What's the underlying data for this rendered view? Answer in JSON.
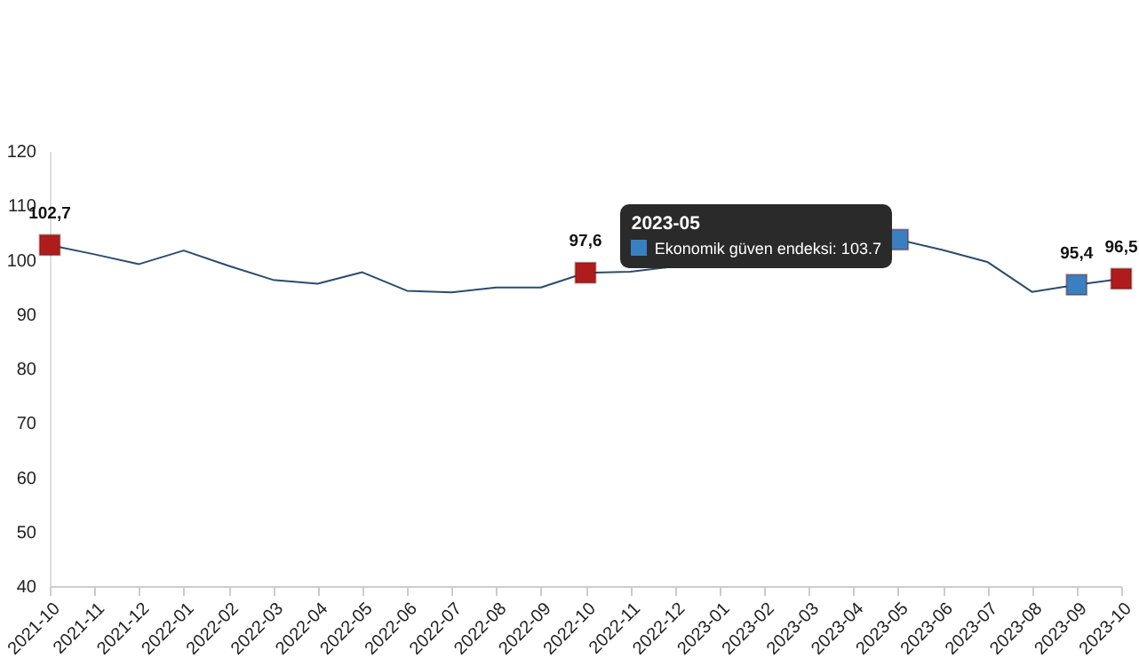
{
  "chart_data": {
    "type": "line",
    "categories": [
      "2021-10",
      "2021-11",
      "2021-12",
      "2022-01",
      "2022-02",
      "2022-03",
      "2022-04",
      "2022-05",
      "2022-06",
      "2022-07",
      "2022-08",
      "2022-09",
      "2022-10",
      "2022-11",
      "2022-12",
      "2023-01",
      "2023-02",
      "2023-03",
      "2023-04",
      "2023-05",
      "2023-06",
      "2023-07",
      "2023-08",
      "2023-09",
      "2023-10"
    ],
    "series": [
      {
        "color": "#2b4b6f",
        "values": [
          102.7,
          101.0,
          99.2,
          101.7,
          98.9,
          96.3,
          95.6,
          97.7,
          94.3,
          94.0,
          94.9,
          94.9,
          97.6,
          97.8,
          null,
          null,
          null,
          null,
          null,
          103.7,
          101.8,
          99.6,
          94.1,
          95.4,
          96.5
        ]
      },
      {
        "type": "scatter",
        "marker": "square",
        "color": "#b01c1c",
        "values": [
          102.7,
          null,
          null,
          null,
          null,
          null,
          null,
          null,
          null,
          null,
          null,
          null,
          97.6,
          null,
          null,
          null,
          null,
          null,
          null,
          null,
          null,
          null,
          null,
          null,
          96.5
        ],
        "value_labels": [
          "102,7",
          null,
          null,
          null,
          null,
          null,
          null,
          null,
          null,
          null,
          null,
          null,
          "97,6",
          null,
          null,
          null,
          null,
          null,
          null,
          null,
          null,
          null,
          null,
          null,
          "96,5"
        ]
      },
      {
        "type": "scatter",
        "marker": "square",
        "color": "#3a80c1",
        "values": [
          null,
          null,
          null,
          null,
          null,
          null,
          null,
          null,
          null,
          null,
          null,
          null,
          null,
          null,
          null,
          null,
          null,
          null,
          null,
          103.7,
          null,
          null,
          null,
          95.4,
          null
        ],
        "value_labels": [
          null,
          null,
          null,
          null,
          null,
          null,
          null,
          null,
          null,
          null,
          null,
          null,
          null,
          null,
          null,
          null,
          null,
          null,
          null,
          null,
          null,
          null,
          null,
          "95,4",
          null
        ]
      }
    ],
    "annotations": [
      "2023-05",
      "Ekonomik güven endeksi: 103.7"
    ],
    "ylim": [
      40,
      120
    ],
    "yticks": [
      40,
      50,
      60,
      70,
      80,
      90,
      100,
      110,
      120
    ],
    "grid": false
  }
}
